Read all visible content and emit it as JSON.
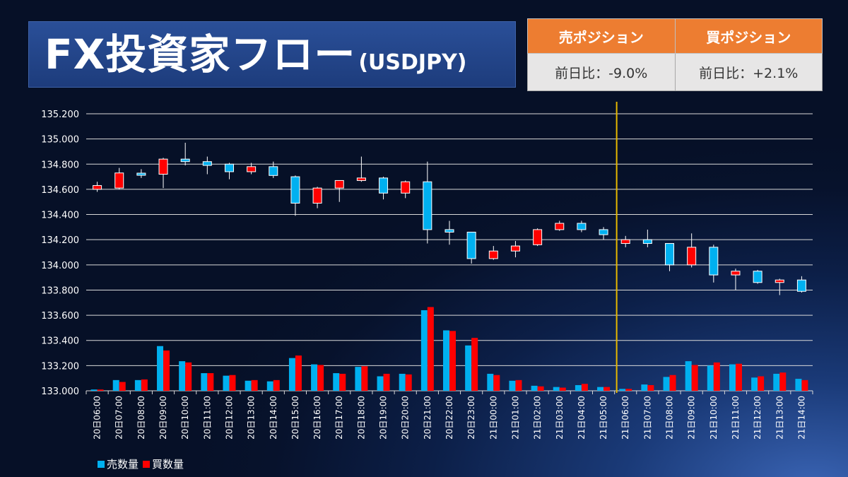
{
  "header": {
    "title": "FX投資家フロー",
    "subtitle": "(USDJPY)"
  },
  "positions": {
    "sell_header": "売ポジション",
    "buy_header": "買ポジション",
    "sell_value": "前日比：-9.0%",
    "buy_value": "前日比：+2.1%"
  },
  "colors": {
    "sell": "#00b0f0",
    "buy": "#ff0000",
    "marker_line": "#e6b800",
    "grid": "#d9d9d9"
  },
  "chart_data": {
    "type": "candlestick+bar",
    "ylim": [
      133.0,
      135.2
    ],
    "yticks": [
      "133.000",
      "133.200",
      "133.400",
      "133.600",
      "133.800",
      "134.000",
      "134.200",
      "134.400",
      "134.600",
      "134.800",
      "135.000",
      "135.200"
    ],
    "categories": [
      "20日06:00",
      "20日07:00",
      "20日08:00",
      "20日09:00",
      "20日10:00",
      "20日11:00",
      "20日12:00",
      "20日13:00",
      "20日14:00",
      "20日15:00",
      "20日16:00",
      "20日17:00",
      "20日18:00",
      "20日19:00",
      "20日20:00",
      "20日21:00",
      "20日22:00",
      "20日23:00",
      "21日00:00",
      "21日01:00",
      "21日02:00",
      "21日03:00",
      "21日04:00",
      "21日05:00",
      "21日06:00",
      "21日07:00",
      "21日08:00",
      "21日09:00",
      "21日10:00",
      "21日11:00",
      "21日12:00",
      "21日13:00",
      "21日14:00"
    ],
    "candles": [
      {
        "o": 134.6,
        "c": 134.63,
        "h": 134.66,
        "l": 134.58
      },
      {
        "o": 134.61,
        "c": 134.73,
        "h": 134.77,
        "l": 134.6
      },
      {
        "o": 134.72,
        "c": 134.72,
        "h": 134.76,
        "l": 134.69
      },
      {
        "o": 134.72,
        "c": 134.84,
        "h": 134.85,
        "l": 134.61
      },
      {
        "o": 134.84,
        "c": 134.82,
        "h": 134.97,
        "l": 134.79
      },
      {
        "o": 134.82,
        "c": 134.79,
        "h": 134.86,
        "l": 134.72
      },
      {
        "o": 134.8,
        "c": 134.74,
        "h": 134.81,
        "l": 134.68
      },
      {
        "o": 134.74,
        "c": 134.78,
        "h": 134.81,
        "l": 134.72
      },
      {
        "o": 134.78,
        "c": 134.71,
        "h": 134.82,
        "l": 134.69
      },
      {
        "o": 134.7,
        "c": 134.49,
        "h": 134.71,
        "l": 134.39
      },
      {
        "o": 134.49,
        "c": 134.61,
        "h": 134.62,
        "l": 134.45
      },
      {
        "o": 134.61,
        "c": 134.67,
        "h": 134.67,
        "l": 134.5
      },
      {
        "o": 134.67,
        "c": 134.69,
        "h": 134.86,
        "l": 134.66
      },
      {
        "o": 134.69,
        "c": 134.57,
        "h": 134.7,
        "l": 134.52
      },
      {
        "o": 134.57,
        "c": 134.66,
        "h": 134.67,
        "l": 134.53
      },
      {
        "o": 134.66,
        "c": 134.28,
        "h": 134.82,
        "l": 134.17
      },
      {
        "o": 134.28,
        "c": 134.26,
        "h": 134.35,
        "l": 134.16
      },
      {
        "o": 134.26,
        "c": 134.05,
        "h": 134.26,
        "l": 134.01
      },
      {
        "o": 134.05,
        "c": 134.11,
        "h": 134.15,
        "l": 134.04
      },
      {
        "o": 134.11,
        "c": 134.15,
        "h": 134.19,
        "l": 134.06
      },
      {
        "o": 134.16,
        "c": 134.28,
        "h": 134.29,
        "l": 134.15
      },
      {
        "o": 134.28,
        "c": 134.33,
        "h": 134.35,
        "l": 134.27
      },
      {
        "o": 134.33,
        "c": 134.28,
        "h": 134.35,
        "l": 134.26
      },
      {
        "o": 134.28,
        "c": 134.24,
        "h": 134.3,
        "l": 134.2
      },
      {
        "o": 134.17,
        "c": 134.2,
        "h": 134.23,
        "l": 134.14
      },
      {
        "o": 134.2,
        "c": 134.17,
        "h": 134.28,
        "l": 134.14
      },
      {
        "o": 134.17,
        "c": 134.0,
        "h": 134.17,
        "l": 133.95
      },
      {
        "o": 134.0,
        "c": 134.14,
        "h": 134.25,
        "l": 133.98
      },
      {
        "o": 134.14,
        "c": 133.92,
        "h": 134.16,
        "l": 133.86
      },
      {
        "o": 133.92,
        "c": 133.95,
        "h": 133.97,
        "l": 133.8
      },
      {
        "o": 133.95,
        "c": 133.86,
        "h": 133.96,
        "l": 133.85
      },
      {
        "o": 133.86,
        "c": 133.88,
        "h": 133.89,
        "l": 133.76
      },
      {
        "o": 133.88,
        "c": 133.79,
        "h": 133.91,
        "l": 133.78
      }
    ],
    "series": [
      {
        "name": "売数量",
        "values": [
          0.01,
          0.085,
          0.085,
          0.355,
          0.235,
          0.14,
          0.12,
          0.08,
          0.075,
          0.26,
          0.21,
          0.14,
          0.19,
          0.115,
          0.135,
          0.64,
          0.48,
          0.36,
          0.135,
          0.08,
          0.04,
          0.03,
          0.045,
          0.03,
          0.015,
          0.05,
          0.11,
          0.235,
          0.2,
          0.21,
          0.105,
          0.135,
          0.095
        ]
      },
      {
        "name": "買数量",
        "values": [
          0.01,
          0.07,
          0.09,
          0.32,
          0.225,
          0.14,
          0.125,
          0.085,
          0.085,
          0.28,
          0.205,
          0.135,
          0.195,
          0.135,
          0.13,
          0.665,
          0.475,
          0.42,
          0.125,
          0.085,
          0.035,
          0.025,
          0.055,
          0.03,
          0.015,
          0.045,
          0.125,
          0.205,
          0.225,
          0.215,
          0.115,
          0.145,
          0.085
        ]
      }
    ],
    "marker_after_category": "21日05:00",
    "grid": true,
    "legend": "bottom-left"
  }
}
